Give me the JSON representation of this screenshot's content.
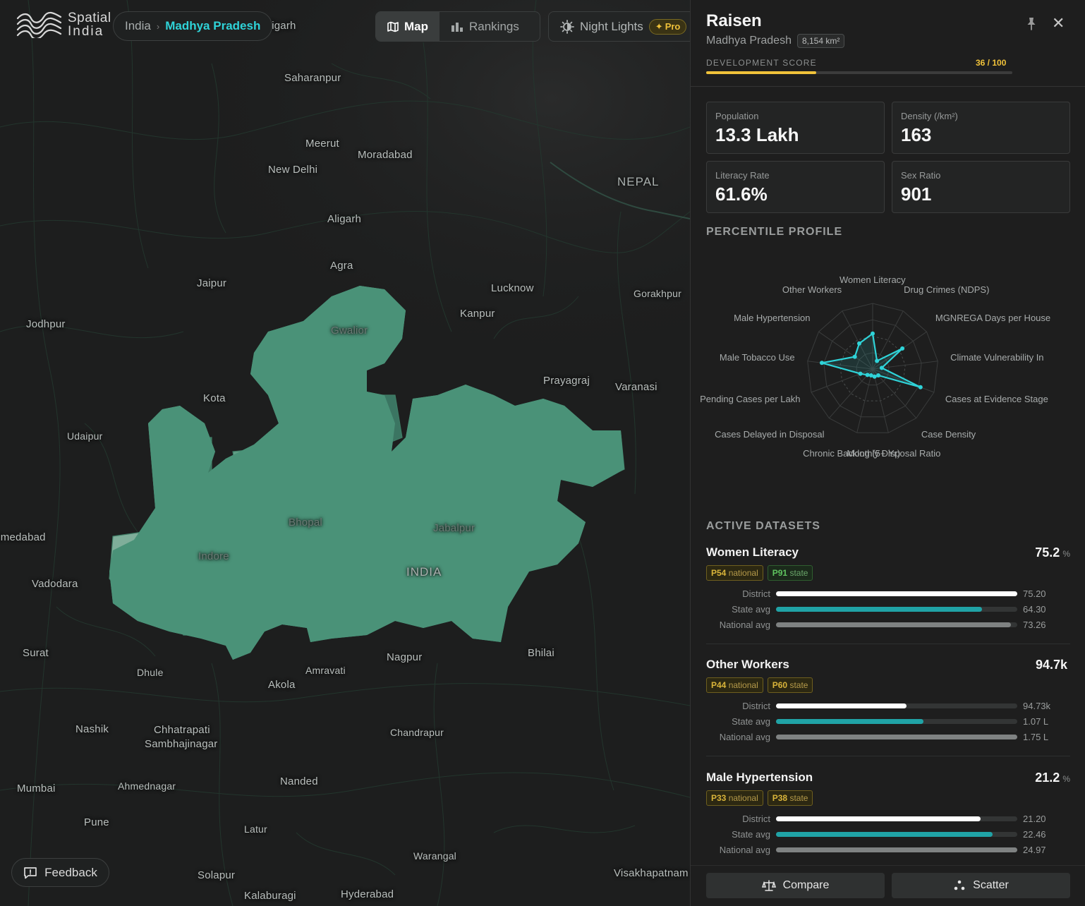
{
  "app": {
    "logo_line1": "Spatial",
    "logo_line2": "India"
  },
  "breadcrumb": {
    "root": "India",
    "separator": "›",
    "current": "Madhya Pradesh"
  },
  "view_toggle": {
    "map_label": "Map",
    "rankings_label": "Rankings",
    "map_icon": "map-icon",
    "rankings_icon": "bar-chart-icon"
  },
  "night_lights": {
    "label": "Night Lights",
    "badge": "Pro",
    "icon": "brightness-icon"
  },
  "map": {
    "cities": [
      "Saharanpur",
      "Meerut",
      "Moradabad",
      "New Delhi",
      "NEPAL",
      "Aligarh",
      "Agra",
      "Jaipur",
      "Lucknow",
      "Gorakhpur",
      "Kanpur",
      "Jodhpur",
      "Gwalior",
      "Prayagraj",
      "Varanasi",
      "Kota",
      "Udaipur",
      "Bhopal",
      "Jabalpur",
      "Indore",
      "INDIA",
      "Ahmedabad",
      "Vadodara",
      "Surat",
      "Dhule",
      "Amravati",
      "Nagpur",
      "Bhilai",
      "Akola",
      "Nashik",
      "Chhatrapati",
      "Sambhajinagar",
      "Chandrapur",
      "Mumbai",
      "Ahmednagar",
      "Nanded",
      "Pune",
      "Latur",
      "Warangal",
      "Solapur",
      "Visakhapatnam",
      "Kalaburagi",
      "Hyderabad",
      "Chandigarh"
    ],
    "highlight_color": "#2fd3d8",
    "region_color": "#4f9a7e"
  },
  "feedback": {
    "label": "Feedback"
  },
  "district": {
    "name": "Raisen",
    "state": "Madhya Pradesh",
    "area": "8,154 km²",
    "dev_label": "DEVELOPMENT SCORE",
    "dev_score_text": "36 / 100",
    "dev_score": 36
  },
  "stats": {
    "population_label": "Population",
    "population": "13.3 Lakh",
    "density_label": "Density (/km²)",
    "density": "163",
    "literacy_label": "Literacy Rate",
    "literacy": "61.6%",
    "sexratio_label": "Sex Ratio",
    "sexratio": "901"
  },
  "percentile_title": "PERCENTILE PROFILE",
  "radar": {
    "axes": [
      "Women Literacy",
      "Drug Crimes (NDPS)",
      "MGNREGA Days per House",
      "Climate Vulnerability In",
      "Cases at Evidence Stage",
      "Case Density",
      "Monthly Disposal Ratio",
      "Chronic Backlog (5+ Yr)",
      "Cases Delayed in Disposal",
      "Pending Cases per Lakh",
      "Male Tobacco Use",
      "Male Hypertension",
      "Other Workers"
    ],
    "values": [
      54,
      14,
      55,
      14,
      78,
      13,
      12,
      10,
      12,
      20,
      78,
      33,
      44
    ]
  },
  "active_title": "ACTIVE DATASETS",
  "datasets": [
    {
      "name": "Women Literacy",
      "value": "75.2",
      "unit": "%",
      "chips": [
        {
          "p": "P54",
          "scope": "national",
          "style": "gold"
        },
        {
          "p": "P91",
          "scope": "state",
          "style": "green"
        }
      ],
      "rows": [
        {
          "label": "District",
          "value": "75.20",
          "frac": 1.0
        },
        {
          "label": "State avg",
          "value": "64.30",
          "frac": 0.855
        },
        {
          "label": "National avg",
          "value": "73.26",
          "frac": 0.975
        }
      ]
    },
    {
      "name": "Other Workers",
      "value": "94.7k",
      "unit": "",
      "chips": [
        {
          "p": "P44",
          "scope": "national",
          "style": "gold"
        },
        {
          "p": "P60",
          "scope": "state",
          "style": "gold"
        }
      ],
      "rows": [
        {
          "label": "District",
          "value": "94.73k",
          "frac": 0.541
        },
        {
          "label": "State avg",
          "value": "1.07 L",
          "frac": 0.611
        },
        {
          "label": "National avg",
          "value": "1.75 L",
          "frac": 1.0
        }
      ]
    },
    {
      "name": "Male Hypertension",
      "value": "21.2",
      "unit": "%",
      "chips": [
        {
          "p": "P33",
          "scope": "national",
          "style": "gold"
        },
        {
          "p": "P38",
          "scope": "state",
          "style": "gold"
        }
      ],
      "rows": [
        {
          "label": "District",
          "value": "21.20",
          "frac": 0.849
        },
        {
          "label": "State avg",
          "value": "22.46",
          "frac": 0.899
        },
        {
          "label": "National avg",
          "value": "24.97",
          "frac": 1.0
        }
      ]
    }
  ],
  "footer": {
    "compare_label": "Compare",
    "scatter_label": "Scatter"
  }
}
